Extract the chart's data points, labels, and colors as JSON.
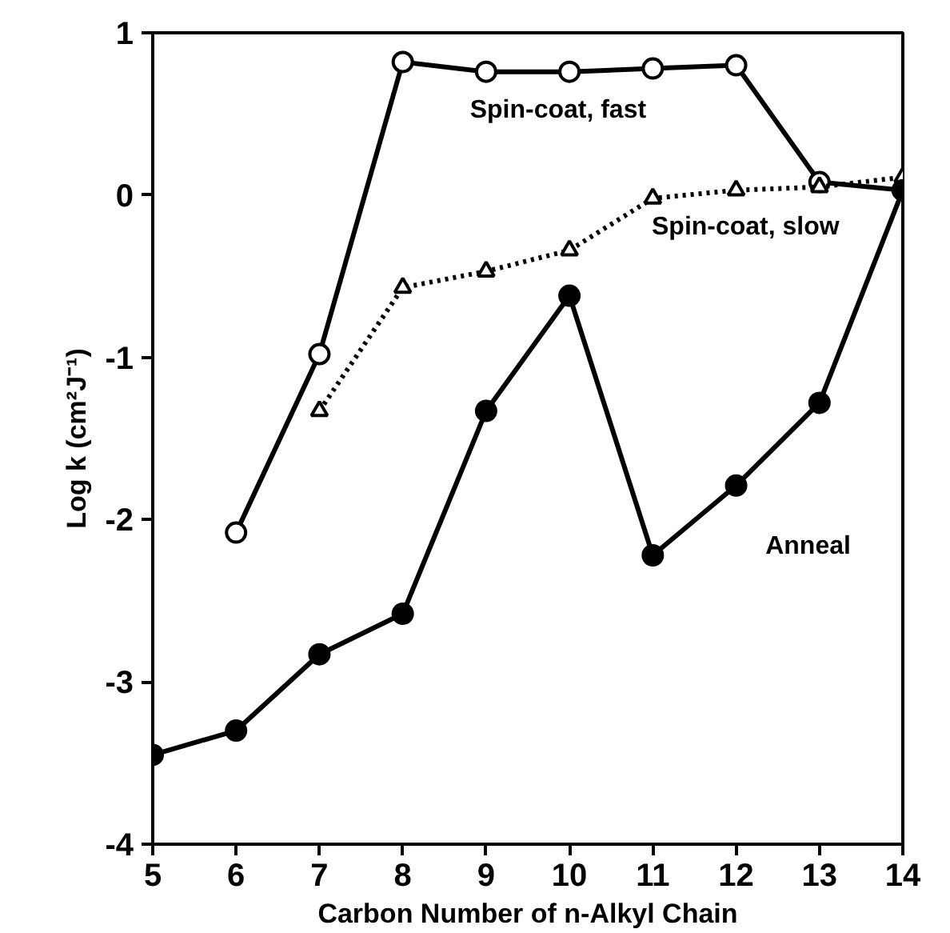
{
  "chart_data": {
    "type": "line",
    "xlabel": "Carbon Number of n-Alkyl Chain",
    "ylabel": "Log k (cm²J⁻¹)",
    "xlim": [
      5,
      14
    ],
    "xticks": [
      5,
      6,
      7,
      8,
      9,
      10,
      11,
      12,
      13,
      14
    ],
    "ylim": [
      -4,
      1
    ],
    "yticks": [
      -4,
      -3,
      -2,
      -1,
      0,
      1
    ],
    "grid": false,
    "series": [
      {
        "name": "Spin-coat, fast",
        "color": "#000000",
        "marker": "circle",
        "line_style": "solid",
        "x": [
          6,
          7,
          8,
          9,
          10,
          11,
          12,
          13,
          14
        ],
        "values": [
          -2.08,
          -0.98,
          0.82,
          0.76,
          0.76,
          0.78,
          0.8,
          0.08,
          0.03
        ]
      },
      {
        "name": "Spin-coat, slow",
        "color": "#000000",
        "marker": "triangle",
        "line_style": "dotted",
        "x": [
          7,
          8,
          9,
          10,
          11,
          12,
          13,
          14
        ],
        "values": [
          -1.33,
          -0.57,
          -0.47,
          -0.34,
          -0.02,
          0.03,
          0.05,
          0.11
        ]
      },
      {
        "name": "Anneal",
        "color": "#000000",
        "marker": "circle",
        "line_style": "solid",
        "x": [
          5,
          6,
          7,
          8,
          9,
          10,
          11,
          12,
          13,
          14
        ],
        "values": [
          -3.45,
          -3.3,
          -2.83,
          -2.58,
          -1.33,
          -0.62,
          -2.22,
          -1.79,
          -1.28,
          0.03
        ]
      }
    ]
  }
}
